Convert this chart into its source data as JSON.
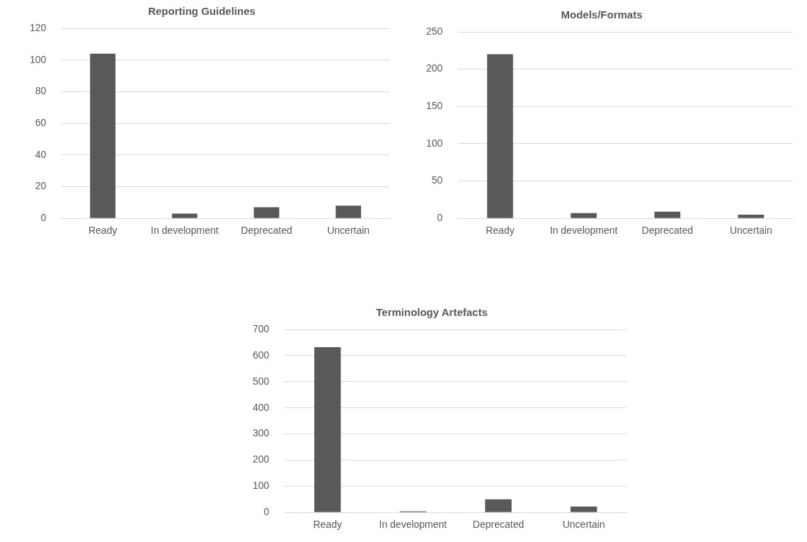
{
  "chart_data": [
    {
      "type": "bar",
      "title": "Reporting Guidelines",
      "categories": [
        "Ready",
        "In development",
        "Deprecated",
        "Uncertain"
      ],
      "values": [
        104,
        3,
        7,
        8
      ],
      "color": "#595959",
      "ylim": [
        0,
        120
      ],
      "yticks": [
        0,
        20,
        40,
        60,
        80,
        100,
        120
      ],
      "grid": "y",
      "legend": false
    },
    {
      "type": "bar",
      "title": "Models/Formats",
      "categories": [
        "Ready",
        "In development",
        "Deprecated",
        "Uncertain"
      ],
      "values": [
        220,
        7,
        9,
        5
      ],
      "color": "#595959",
      "ylim": [
        0,
        250
      ],
      "yticks": [
        0,
        50,
        100,
        150,
        200,
        250
      ],
      "grid": "y",
      "legend": false
    },
    {
      "type": "bar",
      "title": "Terminology Artefacts",
      "categories": [
        "Ready",
        "In development",
        "Deprecated",
        "Uncertain"
      ],
      "values": [
        632,
        4,
        50,
        22
      ],
      "color": "#595959",
      "ylim": [
        0,
        700
      ],
      "yticks": [
        0,
        100,
        200,
        300,
        400,
        500,
        600,
        700
      ],
      "grid": "y",
      "legend": false
    }
  ]
}
